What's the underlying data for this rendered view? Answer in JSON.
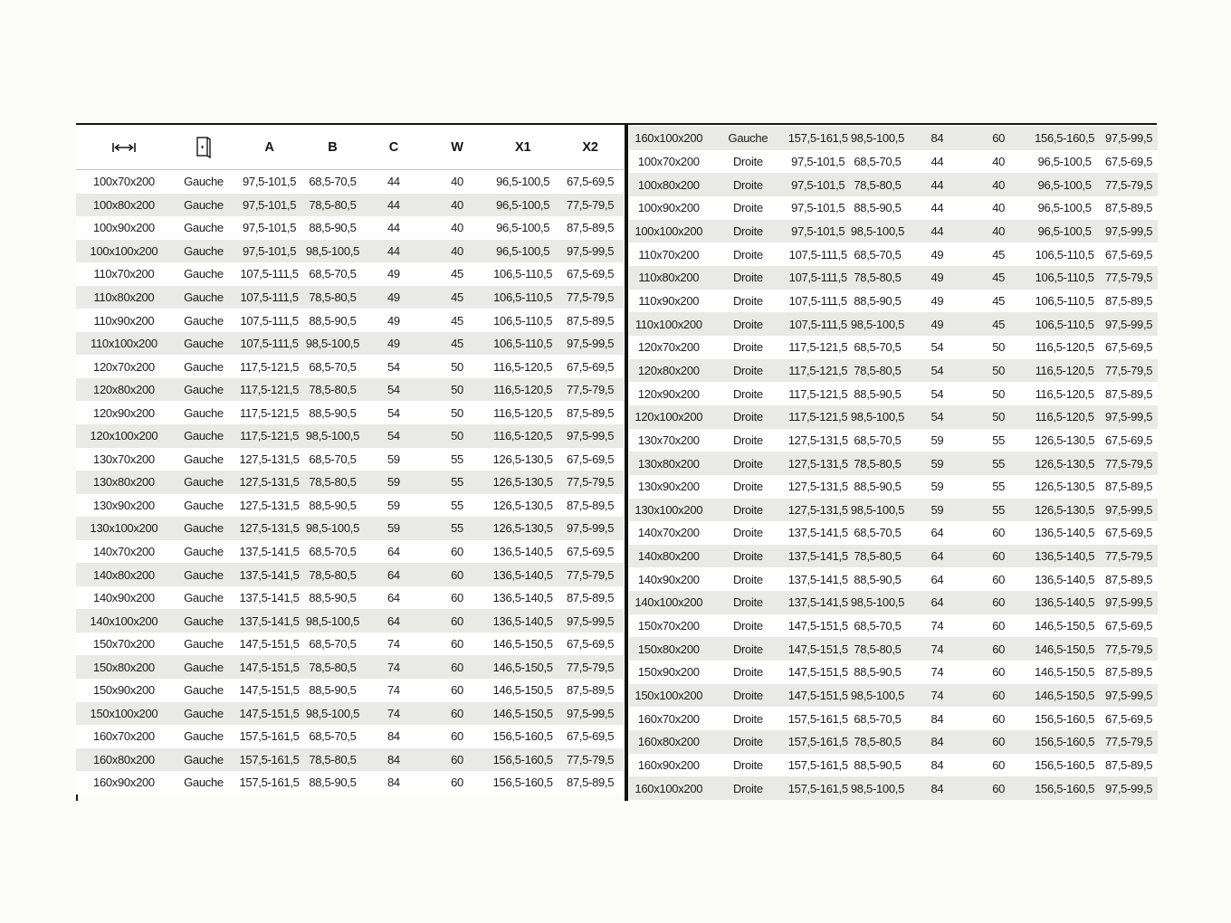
{
  "icons": {
    "width_icon": "width-dimension-icon",
    "door_icon": "door-orientation-icon"
  },
  "colors": {
    "stripe": "#e9e9e8",
    "border": "#161616",
    "text": "#1b1b1b",
    "page_background": "#fbfbf9"
  },
  "table": {
    "header": {
      "columns": [
        "A",
        "B",
        "C",
        "W",
        "X1",
        "X2"
      ]
    },
    "left_rows": [
      [
        "100x70x200",
        "Gauche",
        "97,5-101,5",
        "68,5-70,5",
        "44",
        "40",
        "96,5-100,5",
        "67,5-69,5"
      ],
      [
        "100x80x200",
        "Gauche",
        "97,5-101,5",
        "78,5-80,5",
        "44",
        "40",
        "96,5-100,5",
        "77,5-79,5"
      ],
      [
        "100x90x200",
        "Gauche",
        "97,5-101,5",
        "88,5-90,5",
        "44",
        "40",
        "96,5-100,5",
        "87,5-89,5"
      ],
      [
        "100x100x200",
        "Gauche",
        "97,5-101,5",
        "98,5-100,5",
        "44",
        "40",
        "96,5-100,5",
        "97,5-99,5"
      ],
      [
        "110x70x200",
        "Gauche",
        "107,5-111,5",
        "68,5-70,5",
        "49",
        "45",
        "106,5-110,5",
        "67,5-69,5"
      ],
      [
        "110x80x200",
        "Gauche",
        "107,5-111,5",
        "78,5-80,5",
        "49",
        "45",
        "106,5-110,5",
        "77,5-79,5"
      ],
      [
        "110x90x200",
        "Gauche",
        "107,5-111,5",
        "88,5-90,5",
        "49",
        "45",
        "106,5-110,5",
        "87,5-89,5"
      ],
      [
        "110x100x200",
        "Gauche",
        "107,5-111,5",
        "98,5-100,5",
        "49",
        "45",
        "106,5-110,5",
        "97,5-99,5"
      ],
      [
        "120x70x200",
        "Gauche",
        "117,5-121,5",
        "68,5-70,5",
        "54",
        "50",
        "116,5-120,5",
        "67,5-69,5"
      ],
      [
        "120x80x200",
        "Gauche",
        "117,5-121,5",
        "78,5-80,5",
        "54",
        "50",
        "116,5-120,5",
        "77,5-79,5"
      ],
      [
        "120x90x200",
        "Gauche",
        "117,5-121,5",
        "88,5-90,5",
        "54",
        "50",
        "116,5-120,5",
        "87,5-89,5"
      ],
      [
        "120x100x200",
        "Gauche",
        "117,5-121,5",
        "98,5-100,5",
        "54",
        "50",
        "116,5-120,5",
        "97,5-99,5"
      ],
      [
        "130x70x200",
        "Gauche",
        "127,5-131,5",
        "68,5-70,5",
        "59",
        "55",
        "126,5-130,5",
        "67,5-69,5"
      ],
      [
        "130x80x200",
        "Gauche",
        "127,5-131,5",
        "78,5-80,5",
        "59",
        "55",
        "126,5-130,5",
        "77,5-79,5"
      ],
      [
        "130x90x200",
        "Gauche",
        "127,5-131,5",
        "88,5-90,5",
        "59",
        "55",
        "126,5-130,5",
        "87,5-89,5"
      ],
      [
        "130x100x200",
        "Gauche",
        "127,5-131,5",
        "98,5-100,5",
        "59",
        "55",
        "126,5-130,5",
        "97,5-99,5"
      ],
      [
        "140x70x200",
        "Gauche",
        "137,5-141,5",
        "68,5-70,5",
        "64",
        "60",
        "136,5-140,5",
        "67,5-69,5"
      ],
      [
        "140x80x200",
        "Gauche",
        "137,5-141,5",
        "78,5-80,5",
        "64",
        "60",
        "136,5-140,5",
        "77,5-79,5"
      ],
      [
        "140x90x200",
        "Gauche",
        "137,5-141,5",
        "88,5-90,5",
        "64",
        "60",
        "136,5-140,5",
        "87,5-89,5"
      ],
      [
        "140x100x200",
        "Gauche",
        "137,5-141,5",
        "98,5-100,5",
        "64",
        "60",
        "136,5-140,5",
        "97,5-99,5"
      ],
      [
        "150x70x200",
        "Gauche",
        "147,5-151,5",
        "68,5-70,5",
        "74",
        "60",
        "146,5-150,5",
        "67,5-69,5"
      ],
      [
        "150x80x200",
        "Gauche",
        "147,5-151,5",
        "78,5-80,5",
        "74",
        "60",
        "146,5-150,5",
        "77,5-79,5"
      ],
      [
        "150x90x200",
        "Gauche",
        "147,5-151,5",
        "88,5-90,5",
        "74",
        "60",
        "146,5-150,5",
        "87,5-89,5"
      ],
      [
        "150x100x200",
        "Gauche",
        "147,5-151,5",
        "98,5-100,5",
        "74",
        "60",
        "146,5-150,5",
        "97,5-99,5"
      ],
      [
        "160x70x200",
        "Gauche",
        "157,5-161,5",
        "68,5-70,5",
        "84",
        "60",
        "156,5-160,5",
        "67,5-69,5"
      ],
      [
        "160x80x200",
        "Gauche",
        "157,5-161,5",
        "78,5-80,5",
        "84",
        "60",
        "156,5-160,5",
        "77,5-79,5"
      ],
      [
        "160x90x200",
        "Gauche",
        "157,5-161,5",
        "88,5-90,5",
        "84",
        "60",
        "156,5-160,5",
        "87,5-89,5"
      ]
    ],
    "right_rows": [
      [
        "160x100x200",
        "Gauche",
        "157,5-161,5",
        "98,5-100,5",
        "84",
        "60",
        "156,5-160,5",
        "97,5-99,5"
      ],
      [
        "100x70x200",
        "Droite",
        "97,5-101,5",
        "68,5-70,5",
        "44",
        "40",
        "96,5-100,5",
        "67,5-69,5"
      ],
      [
        "100x80x200",
        "Droite",
        "97,5-101,5",
        "78,5-80,5",
        "44",
        "40",
        "96,5-100,5",
        "77,5-79,5"
      ],
      [
        "100x90x200",
        "Droite",
        "97,5-101,5",
        "88,5-90,5",
        "44",
        "40",
        "96,5-100,5",
        "87,5-89,5"
      ],
      [
        "100x100x200",
        "Droite",
        "97,5-101,5",
        "98,5-100,5",
        "44",
        "40",
        "96,5-100,5",
        "97,5-99,5"
      ],
      [
        "110x70x200",
        "Droite",
        "107,5-111,5",
        "68,5-70,5",
        "49",
        "45",
        "106,5-110,5",
        "67,5-69,5"
      ],
      [
        "110x80x200",
        "Droite",
        "107,5-111,5",
        "78,5-80,5",
        "49",
        "45",
        "106,5-110,5",
        "77,5-79,5"
      ],
      [
        "110x90x200",
        "Droite",
        "107,5-111,5",
        "88,5-90,5",
        "49",
        "45",
        "106,5-110,5",
        "87,5-89,5"
      ],
      [
        "110x100x200",
        "Droite",
        "107,5-111,5",
        "98,5-100,5",
        "49",
        "45",
        "106,5-110,5",
        "97,5-99,5"
      ],
      [
        "120x70x200",
        "Droite",
        "117,5-121,5",
        "68,5-70,5",
        "54",
        "50",
        "116,5-120,5",
        "67,5-69,5"
      ],
      [
        "120x80x200",
        "Droite",
        "117,5-121,5",
        "78,5-80,5",
        "54",
        "50",
        "116,5-120,5",
        "77,5-79,5"
      ],
      [
        "120x90x200",
        "Droite",
        "117,5-121,5",
        "88,5-90,5",
        "54",
        "50",
        "116,5-120,5",
        "87,5-89,5"
      ],
      [
        "120x100x200",
        "Droite",
        "117,5-121,5",
        "98,5-100,5",
        "54",
        "50",
        "116,5-120,5",
        "97,5-99,5"
      ],
      [
        "130x70x200",
        "Droite",
        "127,5-131,5",
        "68,5-70,5",
        "59",
        "55",
        "126,5-130,5",
        "67,5-69,5"
      ],
      [
        "130x80x200",
        "Droite",
        "127,5-131,5",
        "78,5-80,5",
        "59",
        "55",
        "126,5-130,5",
        "77,5-79,5"
      ],
      [
        "130x90x200",
        "Droite",
        "127,5-131,5",
        "88,5-90,5",
        "59",
        "55",
        "126,5-130,5",
        "87,5-89,5"
      ],
      [
        "130x100x200",
        "Droite",
        "127,5-131,5",
        "98,5-100,5",
        "59",
        "55",
        "126,5-130,5",
        "97,5-99,5"
      ],
      [
        "140x70x200",
        "Droite",
        "137,5-141,5",
        "68,5-70,5",
        "64",
        "60",
        "136,5-140,5",
        "67,5-69,5"
      ],
      [
        "140x80x200",
        "Droite",
        "137,5-141,5",
        "78,5-80,5",
        "64",
        "60",
        "136,5-140,5",
        "77,5-79,5"
      ],
      [
        "140x90x200",
        "Droite",
        "137,5-141,5",
        "88,5-90,5",
        "64",
        "60",
        "136,5-140,5",
        "87,5-89,5"
      ],
      [
        "140x100x200",
        "Droite",
        "137,5-141,5",
        "98,5-100,5",
        "64",
        "60",
        "136,5-140,5",
        "97,5-99,5"
      ],
      [
        "150x70x200",
        "Droite",
        "147,5-151,5",
        "68,5-70,5",
        "74",
        "60",
        "146,5-150,5",
        "67,5-69,5"
      ],
      [
        "150x80x200",
        "Droite",
        "147,5-151,5",
        "78,5-80,5",
        "74",
        "60",
        "146,5-150,5",
        "77,5-79,5"
      ],
      [
        "150x90x200",
        "Droite",
        "147,5-151,5",
        "88,5-90,5",
        "74",
        "60",
        "146,5-150,5",
        "87,5-89,5"
      ],
      [
        "150x100x200",
        "Droite",
        "147,5-151,5",
        "98,5-100,5",
        "74",
        "60",
        "146,5-150,5",
        "97,5-99,5"
      ],
      [
        "160x70x200",
        "Droite",
        "157,5-161,5",
        "68,5-70,5",
        "84",
        "60",
        "156,5-160,5",
        "67,5-69,5"
      ],
      [
        "160x80x200",
        "Droite",
        "157,5-161,5",
        "78,5-80,5",
        "84",
        "60",
        "156,5-160,5",
        "77,5-79,5"
      ],
      [
        "160x90x200",
        "Droite",
        "157,5-161,5",
        "88,5-90,5",
        "84",
        "60",
        "156,5-160,5",
        "87,5-89,5"
      ],
      [
        "160x100x200",
        "Droite",
        "157,5-161,5",
        "98,5-100,5",
        "84",
        "60",
        "156,5-160,5",
        "97,5-99,5"
      ]
    ]
  }
}
